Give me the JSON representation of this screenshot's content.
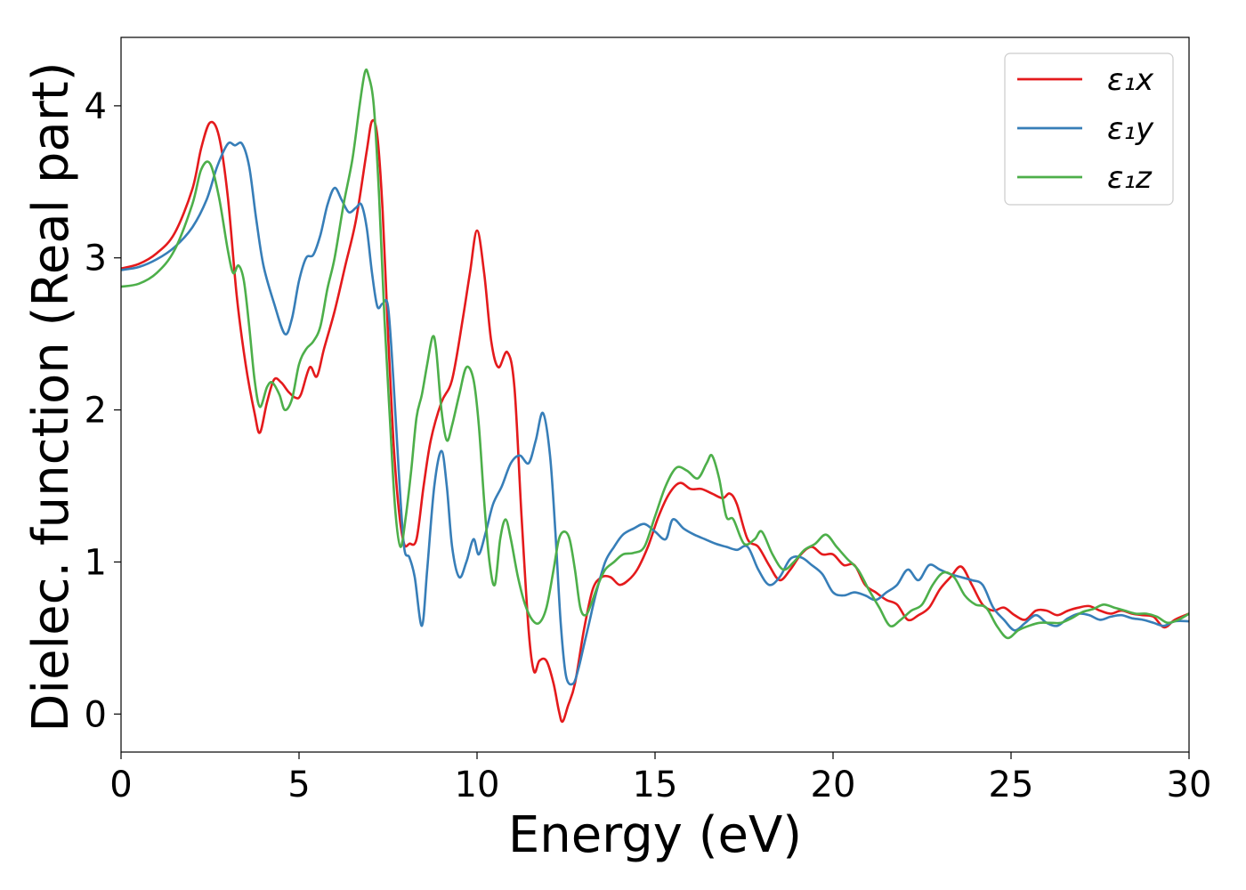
{
  "chart_data": {
    "type": "line",
    "xlabel": "Energy (eV)",
    "ylabel": "Dielec. function (Real part)",
    "xlim": [
      0,
      30
    ],
    "ylim": [
      -0.25,
      4.45
    ],
    "xticks": [
      0,
      5,
      10,
      15,
      20,
      25,
      30
    ],
    "yticks": [
      0,
      1,
      2,
      3,
      4
    ],
    "grid": false,
    "legend": "top-right",
    "series": [
      {
        "name": "ε₁x",
        "color": "#e41a1c",
        "x": [
          0,
          0.5,
          1,
          1.5,
          2,
          2.25,
          2.5,
          2.75,
          3,
          3.25,
          3.5,
          3.75,
          3.9,
          4.1,
          4.3,
          4.5,
          4.7,
          4.9,
          5.05,
          5.3,
          5.5,
          5.7,
          6,
          6.3,
          6.6,
          6.9,
          7.05,
          7.2,
          7.35,
          7.5,
          7.65,
          7.8,
          7.95,
          8.1,
          8.3,
          8.5,
          8.7,
          9,
          9.3,
          9.6,
          9.8,
          10,
          10.2,
          10.4,
          10.6,
          10.85,
          11.05,
          11.25,
          11.45,
          11.6,
          11.75,
          11.95,
          12.15,
          12.3,
          12.4,
          12.55,
          12.75,
          13,
          13.25,
          13.5,
          13.75,
          14,
          14.25,
          14.5,
          14.8,
          15.1,
          15.4,
          15.7,
          16,
          16.3,
          16.6,
          16.9,
          17.1,
          17.3,
          17.6,
          17.9,
          18.2,
          18.5,
          18.8,
          19.1,
          19.4,
          19.7,
          20,
          20.3,
          20.6,
          20.9,
          21.2,
          21.5,
          21.8,
          22.1,
          22.4,
          22.7,
          23,
          23.3,
          23.6,
          23.9,
          24.2,
          24.5,
          24.8,
          25.1,
          25.4,
          25.7,
          26,
          26.3,
          26.6,
          26.9,
          27.2,
          27.5,
          27.8,
          28.1,
          28.4,
          28.7,
          29,
          29.3,
          29.6,
          30
        ],
        "y": [
          2.93,
          2.96,
          3.03,
          3.16,
          3.45,
          3.72,
          3.89,
          3.8,
          3.4,
          2.75,
          2.3,
          1.98,
          1.85,
          2.05,
          2.2,
          2.18,
          2.12,
          2.08,
          2.1,
          2.28,
          2.22,
          2.4,
          2.65,
          2.95,
          3.25,
          3.7,
          3.9,
          3.8,
          3.3,
          2.5,
          1.8,
          1.35,
          1.12,
          1.12,
          1.15,
          1.5,
          1.8,
          2.05,
          2.2,
          2.6,
          2.9,
          3.18,
          2.9,
          2.45,
          2.28,
          2.38,
          2.15,
          1.3,
          0.55,
          0.28,
          0.35,
          0.35,
          0.2,
          0.02,
          -0.05,
          0.05,
          0.2,
          0.55,
          0.82,
          0.9,
          0.9,
          0.85,
          0.88,
          0.95,
          1.1,
          1.3,
          1.45,
          1.52,
          1.48,
          1.48,
          1.45,
          1.42,
          1.45,
          1.38,
          1.15,
          1.1,
          0.98,
          0.88,
          0.95,
          1.05,
          1.1,
          1.05,
          1.05,
          0.98,
          0.98,
          0.85,
          0.8,
          0.75,
          0.72,
          0.62,
          0.65,
          0.7,
          0.82,
          0.9,
          0.97,
          0.85,
          0.72,
          0.68,
          0.7,
          0.65,
          0.62,
          0.68,
          0.68,
          0.65,
          0.68,
          0.7,
          0.71,
          0.68,
          0.66,
          0.68,
          0.66,
          0.65,
          0.64,
          0.57,
          0.62,
          0.66
        ]
      },
      {
        "name": "ε₁y",
        "color": "#377eb8",
        "x": [
          0,
          0.5,
          1,
          1.5,
          2,
          2.4,
          2.7,
          3,
          3.2,
          3.4,
          3.6,
          3.8,
          4,
          4.3,
          4.6,
          4.8,
          5,
          5.2,
          5.4,
          5.6,
          5.8,
          6,
          6.2,
          6.4,
          6.6,
          6.75,
          6.9,
          7.05,
          7.2,
          7.35,
          7.5,
          7.65,
          7.8,
          7.95,
          8.1,
          8.25,
          8.45,
          8.6,
          8.8,
          9,
          9.15,
          9.3,
          9.5,
          9.7,
          9.9,
          10.05,
          10.25,
          10.45,
          10.7,
          10.95,
          11.2,
          11.45,
          11.65,
          11.85,
          12.05,
          12.2,
          12.35,
          12.5,
          12.7,
          12.85,
          13,
          13.15,
          13.35,
          13.6,
          13.85,
          14.1,
          14.4,
          14.7,
          15,
          15.3,
          15.5,
          15.8,
          16.1,
          16.4,
          16.7,
          17,
          17.3,
          17.6,
          17.9,
          18.2,
          18.5,
          18.8,
          19.1,
          19.4,
          19.7,
          20,
          20.3,
          20.6,
          20.9,
          21.2,
          21.5,
          21.8,
          22.1,
          22.4,
          22.7,
          23,
          23.3,
          23.6,
          23.9,
          24.2,
          24.5,
          24.8,
          25.1,
          25.4,
          25.7,
          26,
          26.3,
          26.6,
          26.9,
          27.2,
          27.5,
          27.8,
          28.1,
          28.4,
          28.7,
          29,
          29.3,
          29.6,
          30
        ],
        "y": [
          2.92,
          2.94,
          2.99,
          3.07,
          3.2,
          3.38,
          3.6,
          3.75,
          3.74,
          3.75,
          3.6,
          3.25,
          2.95,
          2.7,
          2.5,
          2.6,
          2.85,
          3.0,
          3.02,
          3.15,
          3.35,
          3.46,
          3.38,
          3.3,
          3.33,
          3.35,
          3.2,
          2.9,
          2.68,
          2.7,
          2.68,
          2.2,
          1.6,
          1.1,
          1.03,
          0.9,
          0.58,
          0.95,
          1.5,
          1.73,
          1.5,
          1.1,
          0.9,
          1.0,
          1.15,
          1.05,
          1.2,
          1.38,
          1.5,
          1.65,
          1.7,
          1.65,
          1.8,
          1.98,
          1.7,
          1.2,
          0.6,
          0.25,
          0.2,
          0.3,
          0.45,
          0.6,
          0.8,
          1.0,
          1.1,
          1.18,
          1.22,
          1.25,
          1.2,
          1.15,
          1.28,
          1.22,
          1.18,
          1.15,
          1.12,
          1.1,
          1.08,
          1.1,
          0.95,
          0.85,
          0.9,
          1.02,
          1.03,
          0.98,
          0.92,
          0.8,
          0.78,
          0.8,
          0.78,
          0.75,
          0.8,
          0.85,
          0.95,
          0.88,
          0.98,
          0.95,
          0.92,
          0.9,
          0.88,
          0.85,
          0.7,
          0.62,
          0.55,
          0.6,
          0.65,
          0.6,
          0.58,
          0.63,
          0.66,
          0.65,
          0.62,
          0.64,
          0.65,
          0.63,
          0.62,
          0.6,
          0.58,
          0.61,
          0.61
        ]
      },
      {
        "name": "ε₁z",
        "color": "#4daf4a",
        "x": [
          0,
          0.5,
          1,
          1.5,
          2,
          2.25,
          2.5,
          2.75,
          3,
          3.15,
          3.3,
          3.45,
          3.6,
          3.75,
          3.9,
          4.1,
          4.25,
          4.45,
          4.6,
          4.8,
          5,
          5.2,
          5.4,
          5.6,
          5.8,
          6,
          6.25,
          6.5,
          6.7,
          6.85,
          6.95,
          7.1,
          7.25,
          7.4,
          7.55,
          7.7,
          7.85,
          8,
          8.15,
          8.3,
          8.45,
          8.6,
          8.75,
          8.85,
          9,
          9.15,
          9.3,
          9.5,
          9.7,
          9.9,
          10.05,
          10.2,
          10.35,
          10.5,
          10.65,
          10.8,
          10.95,
          11.15,
          11.35,
          11.55,
          11.75,
          11.95,
          12.15,
          12.3,
          12.45,
          12.6,
          12.75,
          12.9,
          13.05,
          13.2,
          13.4,
          13.6,
          13.85,
          14.1,
          14.4,
          14.7,
          15,
          15.3,
          15.6,
          15.9,
          16.2,
          16.45,
          16.6,
          16.8,
          17,
          17.2,
          17.5,
          17.8,
          18,
          18.3,
          18.6,
          18.9,
          19.2,
          19.5,
          19.8,
          20.1,
          20.4,
          20.7,
          21,
          21.3,
          21.6,
          21.9,
          22.2,
          22.5,
          22.8,
          23.1,
          23.4,
          23.7,
          24,
          24.3,
          24.6,
          24.9,
          25.2,
          25.5,
          25.8,
          26.1,
          26.4,
          26.7,
          27,
          27.3,
          27.6,
          27.9,
          28.2,
          28.5,
          28.8,
          29.1,
          29.4,
          29.7,
          30
        ],
        "y": [
          2.81,
          2.83,
          2.9,
          3.05,
          3.35,
          3.58,
          3.62,
          3.4,
          3.05,
          2.9,
          2.95,
          2.85,
          2.55,
          2.2,
          2.02,
          2.15,
          2.18,
          2.1,
          2.0,
          2.07,
          2.3,
          2.4,
          2.45,
          2.55,
          2.8,
          3.0,
          3.35,
          3.65,
          4.0,
          4.22,
          4.2,
          4.0,
          3.4,
          2.6,
          1.95,
          1.35,
          1.1,
          1.3,
          1.6,
          1.95,
          2.1,
          2.3,
          2.48,
          2.4,
          2.0,
          1.8,
          1.9,
          2.1,
          2.28,
          2.2,
          1.9,
          1.4,
          1.0,
          0.85,
          1.15,
          1.28,
          1.15,
          0.9,
          0.72,
          0.62,
          0.6,
          0.7,
          0.95,
          1.15,
          1.2,
          1.15,
          0.95,
          0.7,
          0.65,
          0.72,
          0.85,
          0.95,
          1.0,
          1.05,
          1.06,
          1.1,
          1.3,
          1.5,
          1.62,
          1.6,
          1.55,
          1.65,
          1.7,
          1.55,
          1.3,
          1.28,
          1.12,
          1.15,
          1.2,
          1.05,
          0.95,
          1.0,
          1.08,
          1.12,
          1.18,
          1.1,
          1.02,
          0.95,
          0.82,
          0.7,
          0.58,
          0.62,
          0.68,
          0.72,
          0.85,
          0.93,
          0.9,
          0.78,
          0.72,
          0.7,
          0.58,
          0.5,
          0.55,
          0.58,
          0.6,
          0.6,
          0.6,
          0.63,
          0.67,
          0.69,
          0.72,
          0.7,
          0.68,
          0.66,
          0.66,
          0.64,
          0.6,
          0.62,
          0.66
        ]
      }
    ]
  }
}
